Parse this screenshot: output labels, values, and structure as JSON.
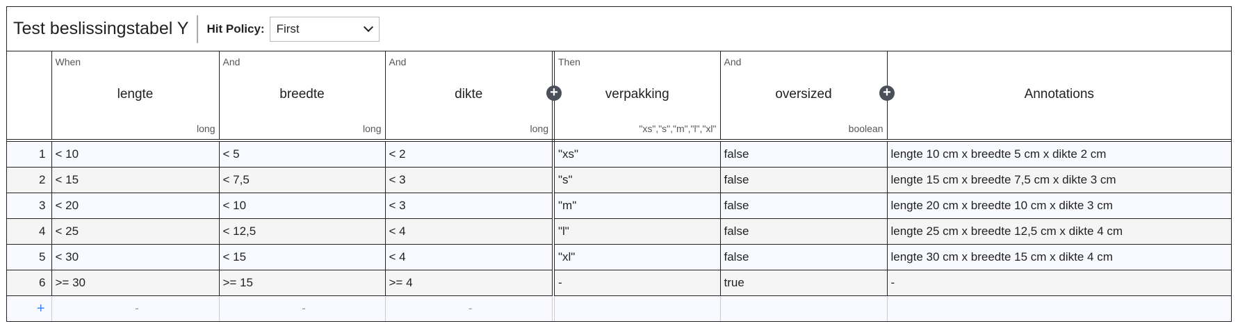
{
  "header": {
    "title": "Test beslissingstabel Y",
    "hit_policy_label": "Hit Policy:",
    "hit_policy_value": "First"
  },
  "columns": [
    {
      "label": "When",
      "name": "lengte",
      "type": "long"
    },
    {
      "label": "And",
      "name": "breedte",
      "type": "long"
    },
    {
      "label": "And",
      "name": "dikte",
      "type": "long"
    },
    {
      "label": "Then",
      "name": "verpakking",
      "type": "\"xs\",\"s\",\"m\",\"l\",\"xl\""
    },
    {
      "label": "And",
      "name": "oversized",
      "type": "boolean"
    },
    {
      "label": "",
      "name": "Annotations",
      "type": ""
    }
  ],
  "rows": [
    [
      "1",
      "< 10",
      "< 5",
      "< 2",
      "\"xs\"",
      "false",
      "lengte 10 cm x breedte 5 cm x dikte 2 cm"
    ],
    [
      "2",
      "< 15",
      "< 7,5",
      "< 3",
      "\"s\"",
      "false",
      "lengte 15 cm x breedte 7,5 cm x dikte 3 cm"
    ],
    [
      "3",
      "< 20",
      "< 10",
      "< 3",
      "\"m\"",
      "false",
      "lengte 20 cm x breedte 10 cm x dikte 3 cm"
    ],
    [
      "4",
      "< 25",
      "< 12,5",
      "< 4",
      "\"l\"",
      "false",
      "lengte 25 cm x breedte 12,5 cm x dikte 4 cm"
    ],
    [
      "5",
      "< 30",
      "< 15",
      "< 4",
      "\"xl\"",
      "false",
      "lengte 30 cm x breedte 15 cm x dikte 4 cm"
    ],
    [
      "6",
      ">= 30",
      ">= 15",
      ">= 4",
      "-",
      "true",
      "-"
    ]
  ],
  "add_row": {
    "symbol": "+",
    "placeholders": [
      "-",
      "-",
      "-",
      "",
      "",
      ""
    ]
  },
  "icons": {
    "add_input": "plus-circle-icon",
    "add_output": "plus-circle-icon",
    "hit_policy": "chevron-down-icon"
  }
}
